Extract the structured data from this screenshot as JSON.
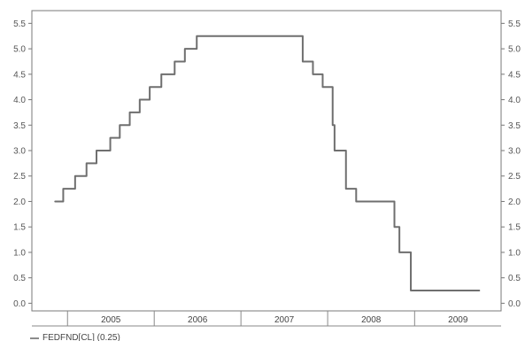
{
  "chart_data": {
    "type": "line",
    "title": "",
    "xlabel": "",
    "ylabel": "",
    "ylim": [
      -0.15,
      5.75
    ],
    "y_ticks": [
      "0.0",
      "0.5",
      "1.0",
      "1.5",
      "2.0",
      "2.5",
      "3.0",
      "3.5",
      "4.0",
      "4.5",
      "5.0",
      "5.5"
    ],
    "y_tick_values": [
      0,
      0.5,
      1.0,
      1.5,
      2.0,
      2.5,
      3.0,
      3.5,
      4.0,
      4.5,
      5.0,
      5.5
    ],
    "right_y_ticks": [
      "5.5",
      "5.0",
      "4.5",
      "4.0",
      "3.5",
      "3.0",
      "2.5",
      "2.0",
      "1.5",
      "1.0",
      "0.5",
      "0.0"
    ],
    "x_categories": [
      "2005",
      "2006",
      "2007",
      "2008",
      "2009"
    ],
    "grid": false,
    "legend_placement": "bottom-left",
    "line_color": "#6f6f6f",
    "series": [
      {
        "name": "FEDFND[CL] (0.25)",
        "x": [
          "2004-11-10",
          "2004-12-14",
          "2005-02-02",
          "2005-03-22",
          "2005-05-03",
          "2005-06-30",
          "2005-08-09",
          "2005-09-20",
          "2005-11-01",
          "2005-12-13",
          "2006-01-31",
          "2006-03-28",
          "2006-05-10",
          "2006-06-29",
          "2007-09-18",
          "2007-10-31",
          "2007-12-11",
          "2008-01-22",
          "2008-01-30",
          "2008-03-18",
          "2008-04-30",
          "2008-10-08",
          "2008-10-29",
          "2008-12-16",
          "2009-09-30"
        ],
        "y": [
          2.0,
          2.25,
          2.5,
          2.75,
          3.0,
          3.25,
          3.5,
          3.75,
          4.0,
          4.25,
          4.5,
          4.75,
          5.0,
          5.25,
          4.75,
          4.5,
          4.25,
          3.5,
          3.0,
          2.25,
          2.0,
          1.5,
          1.0,
          0.25,
          0.25
        ]
      }
    ]
  },
  "legend": {
    "label": "FEDFND[CL] (0.25)"
  }
}
